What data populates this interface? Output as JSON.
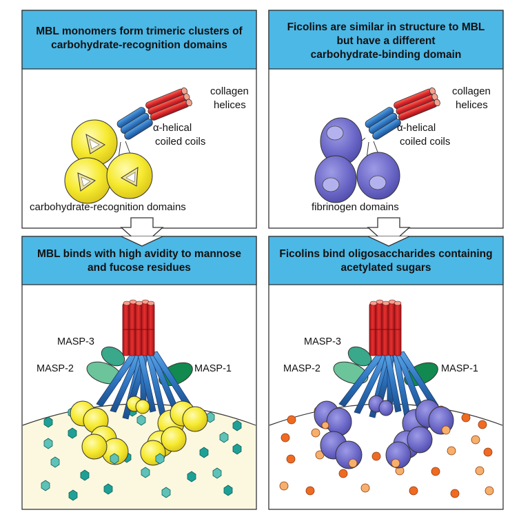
{
  "panels": {
    "top_left": {
      "title_line1": "MBL monomers form trimeric clusters of",
      "title_line2": "carbohydrate-recognition domains",
      "label_collagen_1": "collagen",
      "label_collagen_2": "helices",
      "label_coil_1": "α-helical",
      "label_coil_2": "coiled coils",
      "label_domains": "carbohydrate-recognition domains"
    },
    "top_right": {
      "title_line1": "Ficolins are similar in structure to MBL",
      "title_line2": "but have a different",
      "title_line3": "carbohydrate-binding domain",
      "label_collagen_1": "collagen",
      "label_collagen_2": "helices",
      "label_coil_1": "α-helical",
      "label_coil_2": "coiled coils",
      "label_domains": "fibrinogen domains"
    },
    "bottom_left": {
      "title_line1": "MBL binds with high avidity to mannose",
      "title_line2": "and fucose residues",
      "masp3": "MASP-3",
      "masp2": "MASP-2",
      "masp1": "MASP-1"
    },
    "bottom_right": {
      "title_line1": "Ficolins bind oligosaccharides containing",
      "title_line2": "acetylated sugars",
      "masp3": "MASP-3",
      "masp2": "MASP-2",
      "masp1": "MASP-1"
    }
  },
  "colors": {
    "header_blue": "#4cb8e6",
    "collagen_red": "#d9262b",
    "coil_blue": "#2f76c1",
    "mbl_yellow": "#f5e92b",
    "ficolin_purple": "#6d69c8",
    "surface_cream": "#fbf8df",
    "mannose_teal": "#1fa096",
    "sugar_orange": "#f06a22",
    "masp_green": "#2e9e6e"
  }
}
